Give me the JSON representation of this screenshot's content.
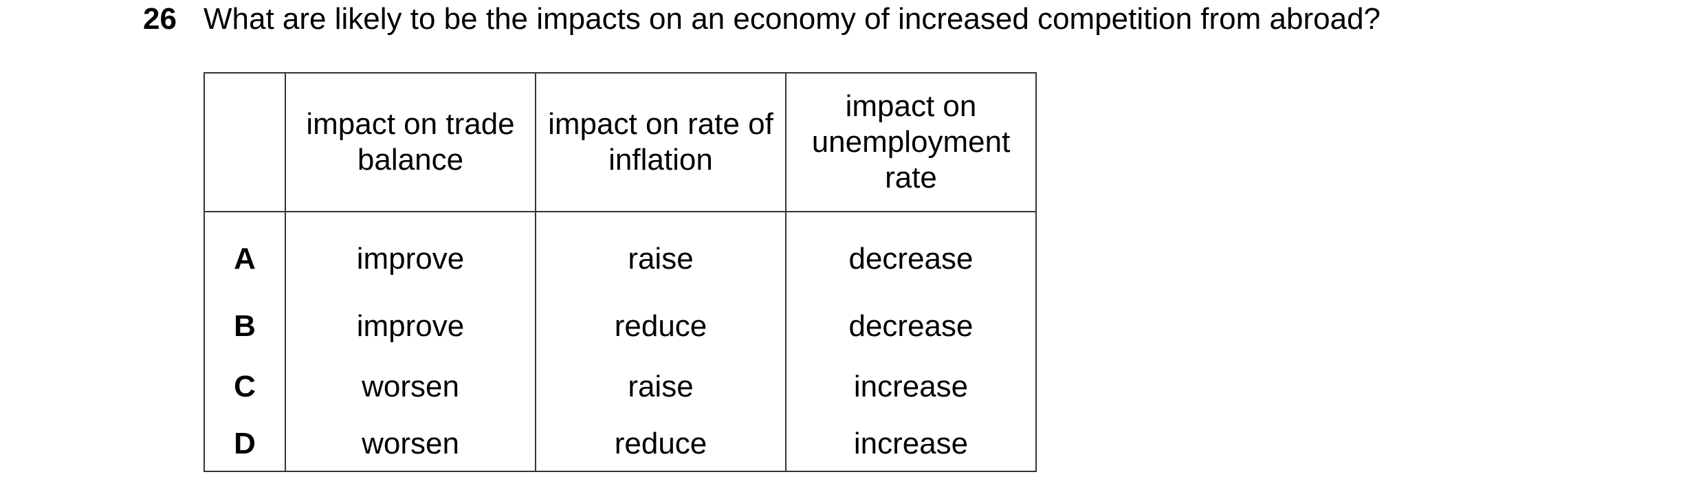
{
  "question": {
    "number": "26",
    "text": "What are likely to be the impacts on an economy of increased competition from abroad?"
  },
  "table": {
    "headers": [
      "",
      "impact on trade balance",
      "impact on rate of inflation",
      "impact on unemployment rate"
    ],
    "rows": [
      {
        "option": "A",
        "trade_balance": "improve",
        "inflation": "raise",
        "unemployment": "decrease"
      },
      {
        "option": "B",
        "trade_balance": "improve",
        "inflation": "reduce",
        "unemployment": "decrease"
      },
      {
        "option": "C",
        "trade_balance": "worsen",
        "inflation": "raise",
        "unemployment": "increase"
      },
      {
        "option": "D",
        "trade_balance": "worsen",
        "inflation": "reduce",
        "unemployment": "increase"
      }
    ]
  }
}
